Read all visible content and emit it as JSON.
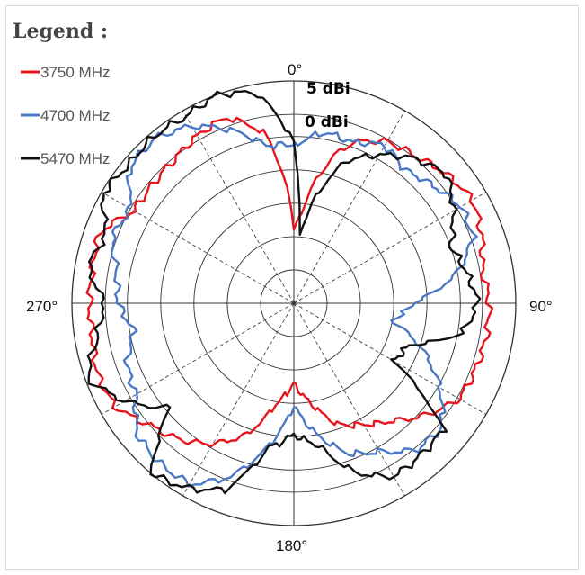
{
  "chart_data": {
    "type": "line",
    "projection": "polar",
    "legend": {
      "title": "Legend :",
      "placement": "top-left",
      "entries": [
        {
          "label": "3750 MHz",
          "color": "#e8141b"
        },
        {
          "label": "4700 MHz",
          "color": "#4a78c4"
        },
        {
          "label": "5470 MHz",
          "color": "#111111"
        }
      ]
    },
    "angle_labels": [
      {
        "angle": 0,
        "text": "0°"
      },
      {
        "angle": 90,
        "text": "90°"
      },
      {
        "angle": 180,
        "text": "180°"
      },
      {
        "angle": 270,
        "text": "270°"
      }
    ],
    "ring_labels": [
      "5 dBi",
      "0 dBi"
    ],
    "grid": true,
    "series": [
      {
        "name": "3750 MHz",
        "color": "#e8141b",
        "points": [
          [
            0,
            0.33
          ],
          [
            5,
            0.41
          ],
          [
            10,
            0.56
          ],
          [
            15,
            0.68
          ],
          [
            20,
            0.77
          ],
          [
            30,
            0.84
          ],
          [
            40,
            0.86
          ],
          [
            50,
            0.9
          ],
          [
            60,
            0.93
          ],
          [
            70,
            0.9
          ],
          [
            80,
            0.86
          ],
          [
            90,
            0.88
          ],
          [
            100,
            0.88
          ],
          [
            110,
            0.87
          ],
          [
            120,
            0.86
          ],
          [
            130,
            0.78
          ],
          [
            140,
            0.69
          ],
          [
            150,
            0.63
          ],
          [
            160,
            0.58
          ],
          [
            170,
            0.46
          ],
          [
            180,
            0.36
          ],
          [
            190,
            0.46
          ],
          [
            200,
            0.63
          ],
          [
            210,
            0.73
          ],
          [
            220,
            0.8
          ],
          [
            230,
            0.85
          ],
          [
            240,
            0.93
          ],
          [
            250,
            0.94
          ],
          [
            260,
            0.92
          ],
          [
            270,
            0.92
          ],
          [
            280,
            0.92
          ],
          [
            290,
            0.93
          ],
          [
            300,
            0.83
          ],
          [
            310,
            0.83
          ],
          [
            320,
            0.84
          ],
          [
            330,
            0.87
          ],
          [
            340,
            0.89
          ],
          [
            350,
            0.78
          ],
          [
            355,
            0.6
          ],
          [
            360,
            0.33
          ]
        ]
      },
      {
        "name": "4700 MHz",
        "color": "#4a78c4",
        "points": [
          [
            0,
            0.71
          ],
          [
            10,
            0.78
          ],
          [
            20,
            0.77
          ],
          [
            30,
            0.82
          ],
          [
            40,
            0.78
          ],
          [
            50,
            0.82
          ],
          [
            60,
            0.87
          ],
          [
            70,
            0.86
          ],
          [
            80,
            0.74
          ],
          [
            90,
            0.54
          ],
          [
            100,
            0.45
          ],
          [
            110,
            0.62
          ],
          [
            120,
            0.76
          ],
          [
            130,
            0.87
          ],
          [
            140,
            0.86
          ],
          [
            150,
            0.77
          ],
          [
            160,
            0.72
          ],
          [
            170,
            0.6
          ],
          [
            180,
            0.46
          ],
          [
            190,
            0.65
          ],
          [
            200,
            0.83
          ],
          [
            210,
            0.94
          ],
          [
            220,
            0.94
          ],
          [
            230,
            0.92
          ],
          [
            240,
            0.82
          ],
          [
            250,
            0.8
          ],
          [
            260,
            0.73
          ],
          [
            270,
            0.79
          ],
          [
            280,
            0.81
          ],
          [
            290,
            0.87
          ],
          [
            300,
            0.85
          ],
          [
            310,
            0.96
          ],
          [
            320,
            0.97
          ],
          [
            330,
            0.92
          ],
          [
            340,
            0.83
          ],
          [
            350,
            0.72
          ],
          [
            360,
            0.71
          ]
        ]
      },
      {
        "name": "5470 MHz",
        "color": "#111111",
        "points": [
          [
            0,
            0.73
          ],
          [
            5,
            0.3
          ],
          [
            10,
            0.45
          ],
          [
            20,
            0.68
          ],
          [
            30,
            0.77
          ],
          [
            40,
            0.85
          ],
          [
            50,
            0.9
          ],
          [
            60,
            0.83
          ],
          [
            70,
            0.75
          ],
          [
            80,
            0.79
          ],
          [
            90,
            0.83
          ],
          [
            100,
            0.77
          ],
          [
            110,
            0.55
          ],
          [
            120,
            0.52
          ],
          [
            130,
            0.88
          ],
          [
            140,
            0.89
          ],
          [
            150,
            0.9
          ],
          [
            160,
            0.81
          ],
          [
            170,
            0.65
          ],
          [
            180,
            0.59
          ],
          [
            190,
            0.66
          ],
          [
            200,
            0.89
          ],
          [
            210,
            0.96
          ],
          [
            220,
            1.0
          ],
          [
            230,
            0.73
          ],
          [
            240,
            0.88
          ],
          [
            250,
            0.99
          ],
          [
            260,
            0.9
          ],
          [
            270,
            0.85
          ],
          [
            280,
            0.94
          ],
          [
            290,
            0.9
          ],
          [
            300,
            0.99
          ],
          [
            310,
            0.97
          ],
          [
            320,
            0.98
          ],
          [
            330,
            0.97
          ],
          [
            340,
            1.0
          ],
          [
            350,
            0.96
          ],
          [
            360,
            0.73
          ]
        ]
      }
    ]
  }
}
